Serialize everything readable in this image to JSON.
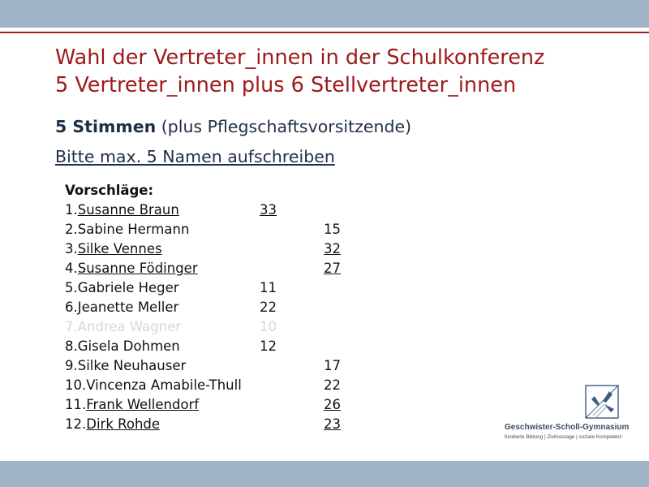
{
  "slide": {
    "title_line1": "Wahl der Vertreter_innen in der Schulkonferenz",
    "title_line2": "5 Vertreter_innen plus 6 Stellvertreter_innen",
    "stimmen_bold": "5 Stimmen",
    "stimmen_rest": " (plus Pflegschaftsvorsitzende)",
    "instruction": "Bitte max. 5 Namen aufschreiben"
  },
  "list": {
    "header": "Vorschläge:",
    "entries": [
      {
        "num": "1.",
        "name": "Susanne Braun",
        "score": "33",
        "name_underlined": true,
        "score_underlined": true,
        "column": 1,
        "faded": false
      },
      {
        "num": "2.",
        "name": "Sabine Hermann",
        "score": "15",
        "name_underlined": false,
        "score_underlined": false,
        "column": 2,
        "faded": false
      },
      {
        "num": "3.",
        "name": "Silke Vennes",
        "score": "32",
        "name_underlined": true,
        "score_underlined": true,
        "column": 2,
        "faded": false
      },
      {
        "num": "4.",
        "name": "Susanne Födinger",
        "score": "27",
        "name_underlined": true,
        "score_underlined": true,
        "column": 2,
        "faded": false
      },
      {
        "num": "5.",
        "name": "Gabriele Heger",
        "score": "11",
        "name_underlined": false,
        "score_underlined": false,
        "column": 1,
        "faded": false
      },
      {
        "num": "6.",
        "name": "Jeanette Meller",
        "score": "22",
        "name_underlined": false,
        "score_underlined": false,
        "column": 1,
        "faded": false
      },
      {
        "num": "7.",
        "name": "Andrea Wagner",
        "score": "10",
        "name_underlined": false,
        "score_underlined": false,
        "column": 1,
        "faded": true
      },
      {
        "num": "8.",
        "name": "Gisela Dohmen",
        "score": "12",
        "name_underlined": false,
        "score_underlined": false,
        "column": 1,
        "faded": false
      },
      {
        "num": "9.",
        "name": "Silke Neuhauser",
        "score": "17",
        "name_underlined": false,
        "score_underlined": false,
        "column": 2,
        "faded": false
      },
      {
        "num": "10.",
        "name": "Vincenza Amabile-Thull",
        "score": "22",
        "name_underlined": false,
        "score_underlined": false,
        "column": 2,
        "faded": false
      },
      {
        "num": "11.",
        "name": "Frank Wellendorf",
        "score": "26",
        "name_underlined": true,
        "score_underlined": true,
        "column": 2,
        "faded": false
      },
      {
        "num": "12.",
        "name": "Dirk Rohde",
        "score": "23",
        "name_underlined": true,
        "score_underlined": true,
        "column": 2,
        "faded": false
      }
    ]
  },
  "logo": {
    "name": "Geschwister-Scholl-Gymnasium",
    "tagline": "fundierte Bildung | Zivilcourage | soziale Kompetenz"
  },
  "colors": {
    "band": "#9fb4c6",
    "title_red": "#9c1a1a",
    "text_navy": "#1f2f44",
    "faded_gray": "#d7d7d7"
  }
}
